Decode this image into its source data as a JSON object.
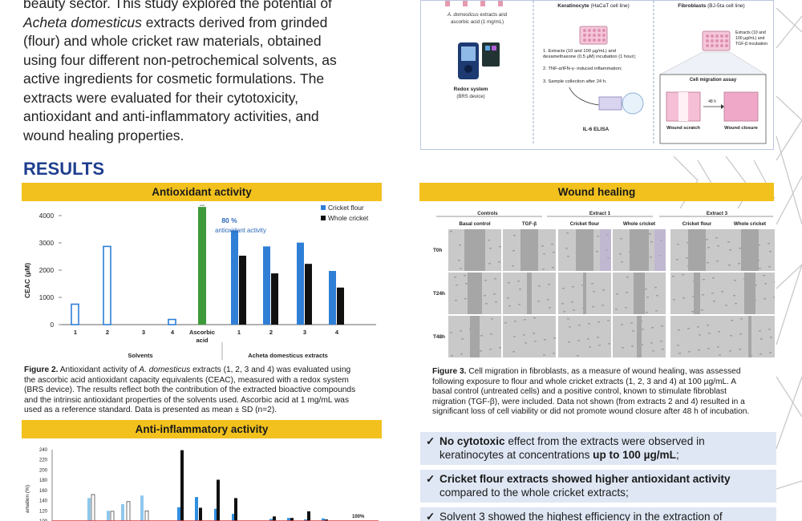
{
  "intro": {
    "line1": "beauty sector. This study explored the potential of",
    "line2_italic": "Acheta domesticus",
    "line2_rest": " extracts derived from grinded",
    "line3": "(flour) and whole cricket raw materials, obtained",
    "line4": "using four different non-petrochemical solvents, as",
    "line5": "active ingredients for cosmetic formulations. The",
    "line6": "extracts were evaluated for their cytotoxicity,",
    "line7": "antioxidant and anti-inflammatory activities, and",
    "line8": "wound healing properties."
  },
  "results_heading": "RESULTS",
  "schematic": {
    "col1_caption_italic": "A. domesticus",
    "col1_caption_rest": " extracts and",
    "col1_caption_line2": "ascorbic acid (1 mg/mL)",
    "col1_device_title": "Redox system",
    "col1_device_sub": "(BRS device)",
    "col2_title_bold": "Keratinocyte",
    "col2_title_rest": " (HaCaT cell line)",
    "col2_step1a": "1. Extracts (10 and 100 µg/mL) and",
    "col2_step1b": "dexamethasone (0.5 µM) incubation (1 hour);",
    "col2_step2": "2. TNF-α/IFN-γ- induced inflammation;",
    "col2_step3": "3. Sample collection after 24 h.",
    "col2_elisa": "IL-6 ELISA",
    "col3_title_bold": "Fibroblasts",
    "col3_title_rest": " (BJ-5ta cell line)",
    "col3_note1": "Extracts (10 and",
    "col3_note2": "100 µg/mL) and",
    "col3_note3": "TGF-β incubation",
    "col3_assay": "Cell migration assay",
    "col3_time": "48 h",
    "col3_left": "Wound scratch",
    "col3_right": "Wound closure"
  },
  "antioxidant": {
    "banner": "Antioxidant activity",
    "annotation_pct": "80 %",
    "annotation_text": "antioxidant activity",
    "group_solvents": "Solvents",
    "group_extracts": "Acheta domesticus extracts",
    "ascorbic_label_1": "Ascorbic",
    "ascorbic_label_2": "acid",
    "caption_fig": "Figure 2.",
    "caption_a": " Antioxidant activity of ",
    "caption_italic": "A. domesticus",
    "caption_b": " extracts (1, 2, 3 and 4) was evaluated using",
    "caption_l2": "the ascorbic acid antioxidant capacity equivalents (CEAC), measured with a redox system",
    "caption_l3": "(BRS device). The results reflect both the contribution of the extracted bioactive compounds",
    "caption_l4": "and the intrinsic antioxidant properties of the solvents used. Ascorbic acid at 1 mg/mL was",
    "caption_l5": "used as a reference standard. Data is presented as mean ± SD (n=2)."
  },
  "anti_inflammatory": {
    "banner": "Anti-inflammatory activity",
    "ref_label": "100%",
    "ylabel_partial": "amation (%)"
  },
  "wound": {
    "banner": "Wound healing",
    "group_controls": "Controls",
    "group_ext1": "Extract 1",
    "group_ext3": "Extract 3",
    "cols": [
      "Basal control",
      "TGF-β",
      "Cricket flour",
      "Whole cricket",
      "Cricket flour",
      "Whole cricket"
    ],
    "rows": [
      "T0h",
      "T24h",
      "T48h"
    ],
    "caption_fig": "Figure 3.",
    "caption_l1": " Cell migration in fibroblasts, as a measure of wound healing, was assessed",
    "caption_l2": "following exposure to flour and whole cricket extracts (1, 2, 3 and 4) at 100 µg/mL. A",
    "caption_l3": "basal control (untreated cells) and a positive control, known to stimulate fibroblast",
    "caption_l4": "migration (TGF-β), were included. Data not shown (from extracts 2 and 4) resulted in a",
    "caption_l5": "significant loss of cell viability or did not promote wound closure after 48 h of incubation."
  },
  "conclusions": [
    {
      "bold": "No cytotoxic",
      "rest1": " effect from the extracts were observed in",
      "line2a": "keratinocytes at concentrations ",
      "line2b": "up to 100 µg/mL",
      "line2c": ";"
    },
    {
      "bold": "Cricket flour extracts showed higher antioxidant activity",
      "line2": "compared to the whole cricket extracts;"
    },
    {
      "text": "Solvent 3 showed the highest efficiency in the extraction of"
    }
  ],
  "chart_data": [
    {
      "type": "bar",
      "title": "Antioxidant activity",
      "ylabel": "CEAC (µM)",
      "xlabel": "",
      "ylim": [
        0,
        4500
      ],
      "yticks": [
        0,
        1000,
        2000,
        3000,
        4000
      ],
      "legend": "top-right",
      "legend_entries": [
        "Cricket flour",
        "Whole cricket"
      ],
      "groups": [
        {
          "name": "Solvents",
          "categories": [
            "1",
            "2",
            "3",
            "4"
          ],
          "values": [
            750,
            2870,
            0,
            190
          ]
        },
        {
          "name": "",
          "categories": [
            "Ascorbic acid"
          ],
          "values": [
            4320
          ]
        },
        {
          "name": "Acheta domesticus extracts",
          "categories": [
            "1",
            "2",
            "3",
            "4"
          ],
          "series": [
            {
              "name": "Cricket flour",
              "values": [
                3460,
                2870,
                3010,
                1970
              ]
            },
            {
              "name": "Whole cricket",
              "values": [
                2530,
                1880,
                2230,
                1360
              ]
            }
          ]
        }
      ],
      "colors": {
        "flour": "#2f7fd6",
        "whole": "#111111",
        "ascorbic": "#3f9a3a",
        "solvent_outline": "#2f7fd6"
      }
    },
    {
      "type": "bar",
      "title": "Anti-inflammatory activity",
      "ylim": [
        100,
        240
      ],
      "yticks": [
        100,
        120,
        140,
        160,
        180,
        200,
        220,
        240
      ],
      "reference_line": 100,
      "reference_label": "100%",
      "bars": [
        {
          "style": "light",
          "value": 145
        },
        {
          "style": "white",
          "value": 152
        },
        {
          "style": "light",
          "value": 120
        },
        {
          "style": "white",
          "value": 119
        },
        {
          "style": "light",
          "value": 133
        },
        {
          "style": "white",
          "value": 138
        },
        {
          "style": "light",
          "value": 150
        },
        {
          "style": "white",
          "value": 120
        },
        {
          "style": "blue",
          "value": 127
        },
        {
          "style": "black",
          "value": 239
        },
        {
          "style": "blue",
          "value": 147
        },
        {
          "style": "black",
          "value": 126
        },
        {
          "style": "blue",
          "value": 124
        },
        {
          "style": "black",
          "value": 181
        },
        {
          "style": "blue",
          "value": 114
        },
        {
          "style": "black",
          "value": 145
        },
        {
          "style": "blue",
          "value": 104
        },
        {
          "style": "black",
          "value": 109
        },
        {
          "style": "blue",
          "value": 106
        },
        {
          "style": "black",
          "value": 106
        },
        {
          "style": "blue",
          "value": 103
        },
        {
          "style": "black",
          "value": 119
        },
        {
          "style": "blue",
          "value": 105
        },
        {
          "style": "black",
          "value": 103
        }
      ]
    }
  ]
}
